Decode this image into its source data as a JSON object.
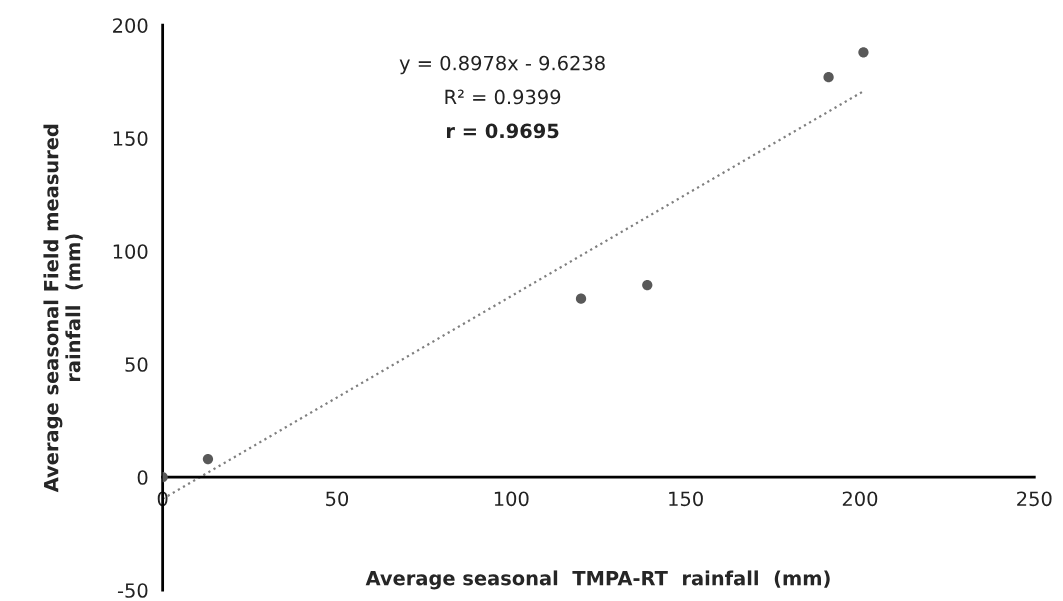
{
  "chart_data": {
    "type": "scatter",
    "xlabel": "Average seasonal  TMPA-RT  rainfall  (mm)",
    "ylabel": "Average seasonal Field measured\nrainfall  (mm)",
    "annotations": [
      "y = 0.8978x - 9.6238",
      "R² = 0.9399",
      "r = 0.9695"
    ],
    "series": [
      {
        "color": "#595959",
        "marker": "circle",
        "x": [
          0,
          13,
          120,
          139,
          191,
          201
        ],
        "values": [
          0,
          8,
          79,
          85,
          177,
          188
        ]
      },
      {
        "type": "line",
        "color": "#7f7f7f",
        "line_style": "dotted",
        "marker": "none",
        "x": [
          0,
          201
        ],
        "values": [
          -9.6,
          170.8
        ]
      }
    ],
    "xlim": [
      0,
      250
    ],
    "xticks": [
      0,
      50,
      100,
      150,
      200,
      250
    ],
    "ylim": [
      -50,
      200
    ],
    "yticks": [
      -50,
      0,
      50,
      100,
      150,
      200
    ],
    "grid": false,
    "legend": false
  }
}
